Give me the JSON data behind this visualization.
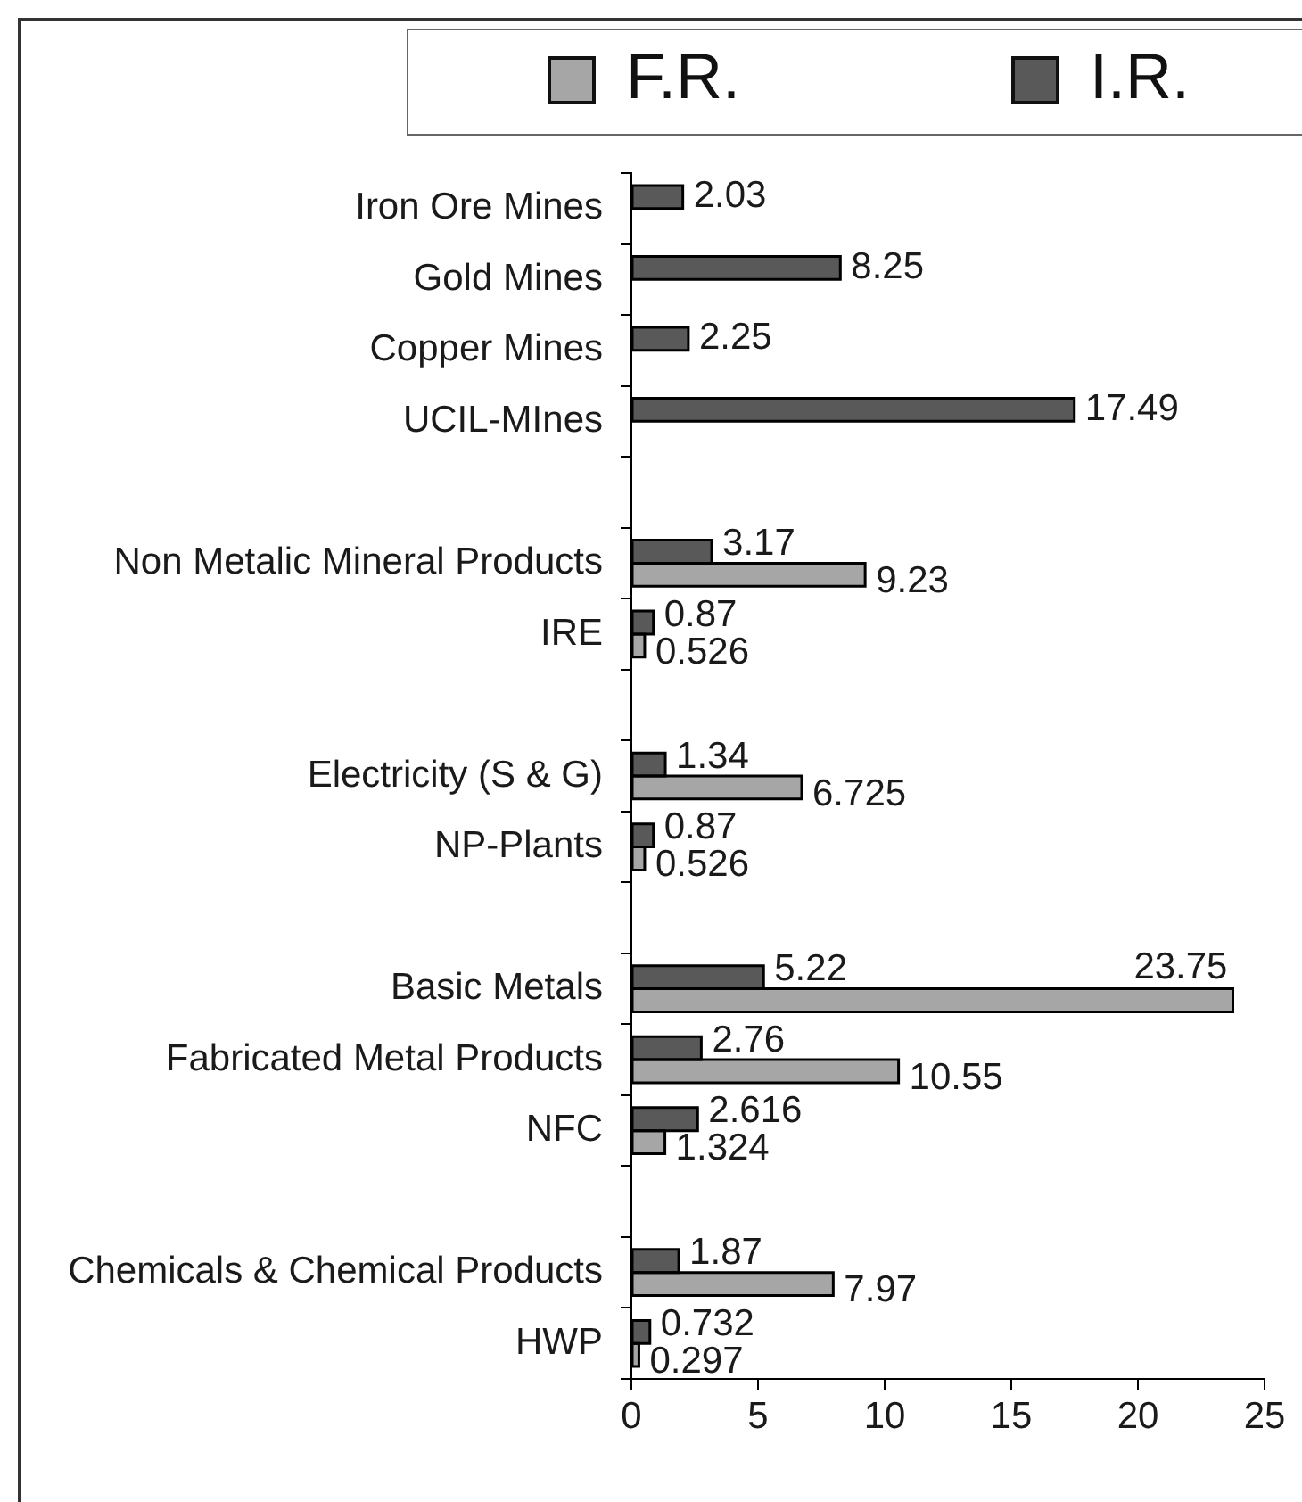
{
  "chart_data": {
    "type": "bar",
    "orientation": "horizontal",
    "categories": [
      "Iron Ore Mines",
      "Gold Mines",
      "Copper Mines",
      "UCIL-MInes",
      null,
      "Non Metalic Mineral Products",
      "IRE",
      null,
      "Electricity (S & G)",
      "NP-Plants",
      null,
      "Basic Metals",
      "Fabricated Metal Products",
      "NFC",
      null,
      "Chemicals & Chemical Products",
      "HWP"
    ],
    "series": [
      {
        "name": "F.R.",
        "color": "#a6a6a6",
        "values": [
          null,
          null,
          null,
          null,
          null,
          9.23,
          0.526,
          null,
          6.725,
          0.526,
          null,
          23.75,
          10.55,
          1.324,
          null,
          7.97,
          0.297
        ]
      },
      {
        "name": "I.R.",
        "color": "#595959",
        "values": [
          2.03,
          8.25,
          2.25,
          17.49,
          null,
          3.17,
          0.87,
          null,
          1.34,
          0.87,
          null,
          5.22,
          2.76,
          2.616,
          null,
          1.87,
          0.732
        ]
      }
    ],
    "xlim": [
      0,
      25
    ],
    "xticks": [
      0,
      5,
      10,
      15,
      20,
      25
    ],
    "data_labels": true,
    "legend": "top"
  }
}
